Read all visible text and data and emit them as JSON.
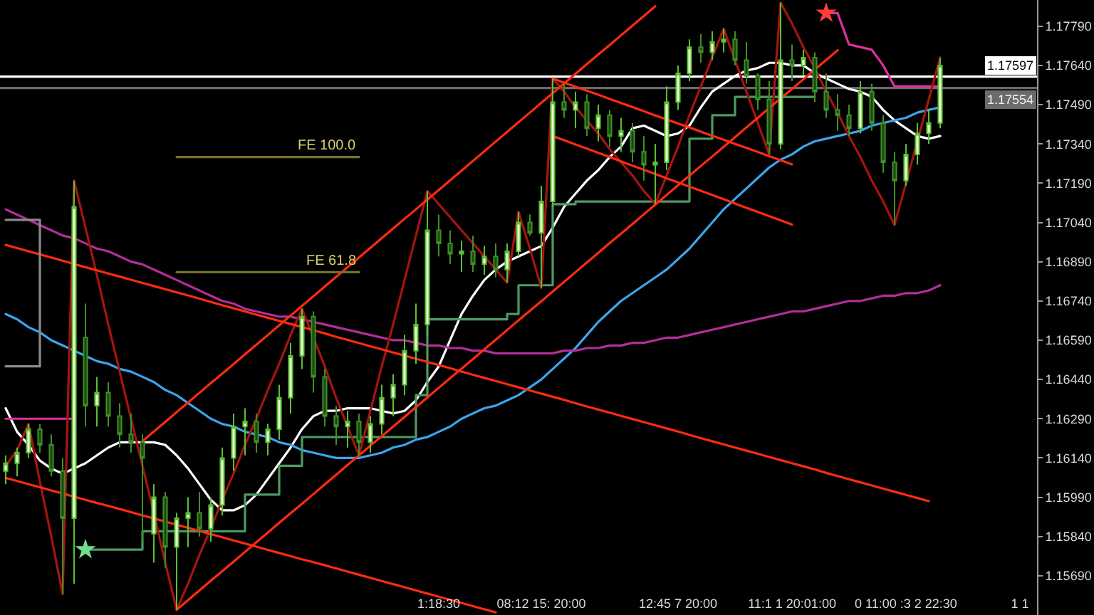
{
  "chart_data": {
    "type": "candlestick",
    "categories": [
      null,
      null,
      null,
      null,
      null,
      null,
      null,
      null,
      null,
      null,
      null,
      null,
      null,
      null,
      null,
      null,
      null,
      null,
      null,
      null,
      null,
      null,
      null,
      null,
      null,
      null,
      null,
      null,
      null,
      null,
      null,
      null,
      null,
      null,
      null,
      null,
      null,
      null,
      "1:18:30",
      null,
      null,
      null,
      null,
      null,
      null,
      null,
      null,
      "08:12 15: 20:00",
      null,
      null,
      null,
      null,
      null,
      null,
      null,
      null,
      null,
      null,
      null,
      "12:45 7 20:00",
      null,
      null,
      null,
      null,
      null,
      null,
      null,
      null,
      null,
      "11:1 1 20:01:00",
      null,
      null,
      null,
      null,
      null,
      null,
      null,
      null,
      null,
      "0 11:00 :3 2 22:30",
      null,
      null,
      null,
      null,
      null,
      null,
      null,
      null,
      null,
      "1 1",
      null
    ],
    "ohlc": [
      [
        1.1609,
        1.1615,
        1.1604,
        1.1612
      ],
      [
        1.1612,
        1.1618,
        1.1607,
        1.1616
      ],
      [
        1.1616,
        1.1627,
        1.1614,
        1.1625
      ],
      [
        1.1625,
        1.1627,
        1.1616,
        1.1619
      ],
      [
        1.1619,
        1.1623,
        1.1607,
        1.1609
      ],
      [
        1.1609,
        1.1614,
        1.1562,
        1.1591
      ],
      [
        1.1591,
        1.172,
        1.1566,
        1.171
      ],
      [
        1.166,
        1.1673,
        1.1626,
        1.1634
      ],
      [
        1.1634,
        1.1645,
        1.1626,
        1.1639
      ],
      [
        1.1639,
        1.1643,
        1.1626,
        1.163
      ],
      [
        1.163,
        1.1635,
        1.1618,
        1.1623
      ],
      [
        1.1623,
        1.1631,
        1.1616,
        1.162
      ],
      [
        1.162,
        1.1623,
        1.1582,
        1.1614
      ],
      [
        1.1585,
        1.1604,
        1.1574,
        1.1599
      ],
      [
        1.1599,
        1.1601,
        1.1572,
        1.158
      ],
      [
        1.158,
        1.1593,
        1.1556,
        1.1591
      ],
      [
        1.1591,
        1.1599,
        1.158,
        1.1593
      ],
      [
        1.1593,
        1.1601,
        1.1584,
        1.1587
      ],
      [
        1.1587,
        1.1599,
        1.1582,
        1.1596
      ],
      [
        1.1596,
        1.1618,
        1.1592,
        1.1614
      ],
      [
        1.1614,
        1.1631,
        1.1609,
        1.1626
      ],
      [
        1.1626,
        1.1633,
        1.1615,
        1.1628
      ],
      [
        1.1628,
        1.1631,
        1.1616,
        1.162
      ],
      [
        1.162,
        1.1627,
        1.1615,
        1.1625
      ],
      [
        1.1625,
        1.1642,
        1.1621,
        1.1637
      ],
      [
        1.1637,
        1.1658,
        1.1631,
        1.1653
      ],
      [
        1.1653,
        1.1671,
        1.1648,
        1.1668
      ],
      [
        1.1668,
        1.167,
        1.1639,
        1.1645
      ],
      [
        1.1645,
        1.1648,
        1.1626,
        1.163
      ],
      [
        1.163,
        1.1634,
        1.1619,
        1.1626
      ],
      [
        1.1626,
        1.1632,
        1.1618,
        1.1628
      ],
      [
        1.1628,
        1.1631,
        1.1615,
        1.162
      ],
      [
        1.162,
        1.163,
        1.1616,
        1.1627
      ],
      [
        1.1627,
        1.1642,
        1.1623,
        1.1637
      ],
      [
        1.1637,
        1.1646,
        1.163,
        1.1642
      ],
      [
        1.1642,
        1.1661,
        1.1638,
        1.1655
      ],
      [
        1.1655,
        1.1673,
        1.165,
        1.1665
      ],
      [
        1.1665,
        1.1716,
        1.1661,
        1.1701
      ],
      [
        1.1701,
        1.1707,
        1.1691,
        1.1696
      ],
      [
        1.1696,
        1.1701,
        1.1688,
        1.1692
      ],
      [
        1.1692,
        1.1697,
        1.1685,
        1.1693
      ],
      [
        1.1693,
        1.1699,
        1.1685,
        1.1688
      ],
      [
        1.1688,
        1.1695,
        1.1684,
        1.1691
      ],
      [
        1.1691,
        1.1696,
        1.1683,
        1.1686
      ],
      [
        1.1686,
        1.1696,
        1.1681,
        1.1693
      ],
      [
        1.1693,
        1.1708,
        1.1691,
        1.1704
      ],
      [
        1.1704,
        1.1707,
        1.1699,
        1.17
      ],
      [
        1.17,
        1.1718,
        1.1679,
        1.1712
      ],
      [
        1.1712,
        1.1759,
        1.171,
        1.175
      ],
      [
        1.175,
        1.1757,
        1.1744,
        1.1747
      ],
      [
        1.1747,
        1.1754,
        1.174,
        1.175
      ],
      [
        1.175,
        1.1753,
        1.1737,
        1.174
      ],
      [
        1.174,
        1.1749,
        1.1735,
        1.1745
      ],
      [
        1.1745,
        1.1747,
        1.1733,
        1.1737
      ],
      [
        1.1737,
        1.1744,
        1.1731,
        1.1739
      ],
      [
        1.1739,
        1.1742,
        1.1727,
        1.1731
      ],
      [
        1.1731,
        1.1737,
        1.172,
        1.1726
      ],
      [
        1.1726,
        1.1734,
        1.1711,
        1.1727
      ],
      [
        1.1727,
        1.1756,
        1.1724,
        1.175
      ],
      [
        1.175,
        1.1764,
        1.1747,
        1.1761
      ],
      [
        1.1761,
        1.1774,
        1.1758,
        1.1771
      ],
      [
        1.1771,
        1.1776,
        1.1765,
        1.1769
      ],
      [
        1.1769,
        1.1777,
        1.1766,
        1.1773
      ],
      [
        1.1773,
        1.1778,
        1.1769,
        1.1774
      ],
      [
        1.1774,
        1.1777,
        1.1764,
        1.1766
      ],
      [
        1.1766,
        1.1773,
        1.1757,
        1.176
      ],
      [
        1.176,
        1.1761,
        1.1747,
        1.1751
      ],
      [
        1.1751,
        1.1758,
        1.173,
        1.1734
      ],
      [
        1.1734,
        1.1788,
        1.1732,
        1.1766
      ],
      [
        1.1766,
        1.1772,
        1.1758,
        1.1764
      ],
      [
        1.1764,
        1.177,
        1.176,
        1.1767
      ],
      [
        1.1767,
        1.1769,
        1.175,
        1.1754
      ],
      [
        1.1754,
        1.1761,
        1.1744,
        1.1747
      ],
      [
        1.1747,
        1.1753,
        1.1739,
        1.1745
      ],
      [
        1.1745,
        1.1749,
        1.1737,
        1.174
      ],
      [
        1.174,
        1.1758,
        1.1738,
        1.1754
      ],
      [
        1.1754,
        1.1757,
        1.1739,
        1.1742
      ],
      [
        1.1742,
        1.1745,
        1.1723,
        1.1727
      ],
      [
        1.1727,
        1.1731,
        1.1703,
        1.172
      ],
      [
        1.172,
        1.1734,
        1.1718,
        1.173
      ],
      [
        1.173,
        1.1742,
        1.1726,
        1.1738
      ],
      [
        1.1738,
        1.1747,
        1.1734,
        1.1742
      ],
      [
        1.1742,
        1.1767,
        1.174,
        1.1764
      ],
      null,
      null,
      null,
      null,
      null,
      null,
      null,
      null
    ],
    "ylim": [
      1.1554,
      1.1789
    ],
    "yticks": [
      {
        "value": 1.1569,
        "label": "1.15690"
      },
      {
        "value": 1.1584,
        "label": "1.15840"
      },
      {
        "value": 1.1599,
        "label": "1.15990"
      },
      {
        "value": 1.1614,
        "label": "1.16140"
      },
      {
        "value": 1.1629,
        "label": "1.16290"
      },
      {
        "value": 1.1644,
        "label": "1.16440"
      },
      {
        "value": 1.1659,
        "label": "1.16590"
      },
      {
        "value": 1.1674,
        "label": "1.16740"
      },
      {
        "value": 1.1689,
        "label": "1.16890"
      },
      {
        "value": 1.1704,
        "label": "1.17040"
      },
      {
        "value": 1.1719,
        "label": "1.17190"
      },
      {
        "value": 1.1734,
        "label": "1.17340"
      },
      {
        "value": 1.1749,
        "label": "1.17490"
      },
      {
        "value": 1.1764,
        "label": "1.17640"
      },
      {
        "value": 1.1779,
        "label": "1.17790"
      }
    ],
    "series": [
      {
        "type": "line",
        "color": "#ffffff",
        "values": [
          1.1633,
          1.1624,
          1.1619,
          1.1613,
          1.161,
          1.1608,
          1.161,
          1.1612,
          1.1615,
          1.1618,
          1.162,
          1.162,
          1.162,
          1.162,
          1.1619,
          1.1615,
          1.161,
          1.1604,
          1.1598,
          1.1594,
          1.1594,
          1.1596,
          1.16,
          1.1606,
          1.1612,
          1.1618,
          1.1625,
          1.163,
          1.1632,
          1.1632,
          1.1633,
          1.1633,
          1.1633,
          1.1632,
          1.1631,
          1.1632,
          1.1636,
          1.1643,
          1.1649,
          1.1659,
          1.1669,
          1.1676,
          1.1682,
          1.1686,
          1.1689,
          1.1691,
          1.1693,
          1.1695,
          1.1702,
          1.171,
          1.1715,
          1.172,
          1.1724,
          1.1729,
          1.1733,
          1.174,
          1.1741,
          1.1739,
          1.1737,
          1.1738,
          1.1741,
          1.1748,
          1.1754,
          1.1757,
          1.176,
          1.1762,
          1.1763,
          1.1765,
          1.1765,
          1.1764,
          1.1764,
          1.1761,
          1.1759,
          1.1757,
          1.1755,
          1.1754,
          1.1752,
          1.1747,
          1.1743,
          1.174,
          1.1737,
          1.1736,
          1.1737,
          null,
          null,
          null,
          null,
          null,
          null,
          null,
          null
        ]
      },
      {
        "type": "line",
        "color": "#3aa6ee",
        "values": [
          1.1669,
          1.1667,
          1.1664,
          1.1662,
          1.1659,
          1.1657,
          1.1655,
          1.1653,
          1.1651,
          1.165,
          1.1648,
          1.1647,
          1.1645,
          1.1643,
          1.164,
          1.1638,
          1.1635,
          1.1632,
          1.1629,
          1.1627,
          1.1626,
          1.1624,
          1.1623,
          1.1622,
          1.162,
          1.1619,
          1.1617,
          1.1616,
          1.1615,
          1.1614,
          1.1614,
          1.1614,
          1.1615,
          1.1616,
          1.1618,
          1.1619,
          1.1621,
          1.1622,
          1.1624,
          1.1626,
          1.1629,
          1.1631,
          1.1633,
          1.1634,
          1.1636,
          1.1638,
          1.1641,
          1.1644,
          1.1648,
          1.1652,
          1.1656,
          1.1661,
          1.1666,
          1.167,
          1.1674,
          1.1677,
          1.168,
          1.1683,
          1.1686,
          1.169,
          1.1694,
          1.1699,
          1.1704,
          1.1709,
          1.1713,
          1.1717,
          1.1721,
          1.1725,
          1.1728,
          1.173,
          1.1733,
          1.1735,
          1.1736,
          1.1737,
          1.1738,
          1.1739,
          1.1741,
          1.1742,
          1.1743,
          1.1744,
          1.1746,
          1.1747,
          1.1748,
          null,
          null,
          null,
          null,
          null,
          null,
          null,
          null
        ]
      },
      {
        "type": "line",
        "color": "#b42d9b",
        "values": [
          1.1709,
          1.1707,
          1.1705,
          1.1703,
          1.1701,
          1.1699,
          1.1698,
          1.1696,
          1.1694,
          1.1693,
          1.1691,
          1.1689,
          1.1688,
          1.1686,
          1.1684,
          1.1682,
          1.168,
          1.1678,
          1.1676,
          1.1674,
          1.1673,
          1.1671,
          1.167,
          1.1669,
          1.1668,
          1.1668,
          1.1667,
          1.1666,
          1.1665,
          1.1664,
          1.1663,
          1.1662,
          1.1661,
          1.166,
          1.1659,
          1.1659,
          1.1658,
          1.1657,
          1.1657,
          1.1656,
          1.1656,
          1.1655,
          1.1655,
          1.1654,
          1.1654,
          1.1654,
          1.1654,
          1.1654,
          1.1654,
          1.1655,
          1.1655,
          1.1656,
          1.1656,
          1.1657,
          1.1657,
          1.1658,
          1.1658,
          1.1659,
          1.166,
          1.166,
          1.1661,
          1.1662,
          1.1663,
          1.1664,
          1.1665,
          1.1666,
          1.1667,
          1.1668,
          1.1669,
          1.167,
          1.167,
          1.1671,
          1.1672,
          1.1673,
          1.1674,
          1.1674,
          1.1675,
          1.1676,
          1.1676,
          1.1677,
          1.1677,
          1.1678,
          1.168,
          null,
          null,
          null,
          null,
          null,
          null,
          null,
          null
        ]
      },
      {
        "type": "step",
        "color": "#4e9a62",
        "values": [
          null,
          null,
          null,
          null,
          null,
          null,
          null,
          1.1579,
          1.1579,
          1.1579,
          1.1579,
          1.1579,
          1.1586,
          1.1586,
          1.1586,
          1.1586,
          1.1586,
          1.1586,
          1.1586,
          1.1586,
          1.1586,
          1.16,
          1.16,
          1.16,
          1.1611,
          1.1611,
          1.1622,
          1.1622,
          1.1622,
          1.1622,
          1.1622,
          1.1622,
          1.1622,
          1.1622,
          1.1622,
          1.1622,
          1.1638,
          1.1667,
          1.1667,
          1.1667,
          1.1667,
          1.1667,
          1.1667,
          1.1667,
          1.1669,
          1.168,
          1.168,
          1.168,
          1.1711,
          1.1711,
          1.1712,
          1.1712,
          1.1712,
          1.1712,
          1.1712,
          1.1712,
          1.1712,
          1.1712,
          1.1712,
          1.1712,
          1.1736,
          1.1736,
          1.1745,
          1.1745,
          1.1752,
          1.1752,
          1.1752,
          1.1752,
          1.1752,
          1.1752,
          1.1752,
          1.1752,
          null,
          null,
          null,
          null,
          null,
          null,
          null,
          null,
          null,
          null,
          null,
          null,
          null,
          null,
          null,
          null,
          null,
          null,
          null
        ]
      },
      {
        "type": "line",
        "color": "#e0309e",
        "values": [
          1.1629,
          1.1629,
          1.1629,
          1.1629,
          1.1629,
          1.1629,
          1.1629,
          null,
          null,
          null,
          null,
          null,
          null,
          null,
          null,
          null,
          null,
          null,
          null,
          null,
          null,
          null,
          null,
          null,
          null,
          null,
          null,
          null,
          null,
          null,
          null,
          null,
          null,
          null,
          null,
          null,
          null,
          null,
          null,
          null,
          null,
          null,
          null,
          null,
          null,
          null,
          null,
          null,
          null,
          null,
          null,
          null,
          null,
          null,
          null,
          null,
          null,
          null,
          null,
          null,
          null,
          null,
          null,
          null,
          null,
          null,
          null,
          null,
          null,
          null,
          null,
          null,
          1.1784,
          1.1784,
          1.1772,
          1.1771,
          1.177,
          1.1764,
          1.1756,
          1.1756,
          1.1756,
          1.1756,
          1.1756,
          null,
          null,
          null,
          null,
          null,
          null,
          null,
          null
        ]
      },
      {
        "type": "line",
        "color": "#a5150f",
        "values": [
          1.1611,
          1.1617,
          1.1627,
          1.1605,
          1.1584,
          1.1562,
          1.172,
          1.1702,
          1.1684,
          1.1665,
          1.1647,
          1.1629,
          1.1611,
          1.1593,
          1.1574,
          1.1556,
          1.1566,
          1.1577,
          1.1587,
          1.1598,
          1.1608,
          1.1619,
          1.1629,
          1.164,
          1.165,
          1.1661,
          1.1671,
          1.166,
          1.1649,
          1.1637,
          1.1626,
          1.1615,
          1.1632,
          1.1649,
          1.1665,
          1.1682,
          1.1699,
          1.1716,
          1.1711,
          1.1706,
          1.1701,
          1.1696,
          1.1691,
          1.1686,
          1.1681,
          1.1708,
          1.1694,
          1.1679,
          1.1759,
          1.1754,
          1.1748,
          1.1743,
          1.1738,
          1.1732,
          1.1727,
          1.1722,
          1.1716,
          1.1711,
          1.1722,
          1.1733,
          1.1745,
          1.1756,
          1.1767,
          1.1778,
          1.1766,
          1.1754,
          1.1742,
          1.173,
          1.1788,
          1.178,
          1.1771,
          1.1763,
          1.1754,
          1.1746,
          1.1737,
          1.1729,
          1.172,
          1.1712,
          1.1703,
          1.1719,
          1.1735,
          1.1751,
          1.1767,
          null,
          null,
          null,
          null,
          null,
          null,
          null,
          null
        ]
      },
      {
        "type": "line",
        "color": "#ff2b10",
        "values": [
          null,
          null,
          null,
          null,
          null,
          null,
          null,
          null,
          null,
          null,
          null,
          null,
          1.16204,
          1.16241,
          1.16278,
          1.16315,
          1.16352,
          1.16389,
          1.16426,
          1.16462,
          1.16499,
          1.16536,
          1.16573,
          1.1661,
          1.16647,
          1.16684,
          1.16721,
          1.16758,
          1.16795,
          1.16832,
          1.16869,
          1.16906,
          1.16943,
          1.1698,
          1.17017,
          1.17054,
          1.1709,
          1.17127,
          1.17164,
          1.17201,
          1.17238,
          1.17275,
          1.17312,
          1.17349,
          1.17386,
          1.17423,
          1.1746,
          1.17497,
          1.17534,
          1.17571,
          1.17608,
          1.17645,
          1.17682,
          1.17718,
          1.17755,
          1.17792,
          1.17829,
          1.17866,
          null,
          null,
          null,
          null,
          null,
          null,
          null,
          null,
          null,
          null,
          null,
          null,
          null,
          null,
          null,
          null,
          null,
          null,
          null,
          null,
          null,
          null,
          null,
          null,
          null,
          null,
          null,
          null,
          null,
          null,
          null,
          null,
          null
        ]
      },
      {
        "type": "line",
        "color": "#ff2b10",
        "values": [
          null,
          null,
          null,
          null,
          null,
          null,
          null,
          null,
          null,
          null,
          null,
          null,
          null,
          null,
          null,
          1.1556,
          1.15597,
          1.15634,
          1.15671,
          1.15707,
          1.15744,
          1.15781,
          1.15818,
          1.15855,
          1.15892,
          1.15929,
          1.15965,
          1.16002,
          1.16039,
          1.16076,
          1.16113,
          1.1615,
          1.16187,
          1.16223,
          1.1626,
          1.16297,
          1.16334,
          1.16371,
          1.16408,
          1.16445,
          1.16481,
          1.16518,
          1.16555,
          1.16592,
          1.16629,
          1.16666,
          1.16703,
          1.16739,
          1.16776,
          1.16813,
          1.1685,
          1.16887,
          1.16924,
          1.16961,
          1.16997,
          1.17034,
          1.17071,
          1.17108,
          1.17145,
          1.17182,
          1.17219,
          1.17256,
          1.17292,
          1.17329,
          1.17366,
          1.17403,
          1.1744,
          1.17477,
          1.17514,
          1.1755,
          1.17587,
          1.17624,
          1.17661,
          1.17698,
          null,
          null,
          null,
          null,
          null,
          null,
          null,
          null,
          null,
          null,
          null,
          null,
          null,
          null,
          null,
          null,
          null
        ]
      },
      {
        "type": "line",
        "color": "#ff2b10",
        "values": [
          1.16954,
          1.16942,
          1.1693,
          1.16918,
          1.16906,
          1.16894,
          1.16881,
          1.16869,
          1.16857,
          1.16845,
          1.16833,
          1.16821,
          1.16809,
          1.16797,
          1.16785,
          1.16773,
          1.16761,
          1.16749,
          1.16736,
          1.16724,
          1.16712,
          1.167,
          1.16688,
          1.16676,
          1.16664,
          1.16652,
          1.1664,
          1.16628,
          1.16616,
          1.16603,
          1.16591,
          1.16579,
          1.16567,
          1.16555,
          1.16543,
          1.16531,
          1.16519,
          1.16507,
          1.16495,
          1.16483,
          1.1647,
          1.16458,
          1.16446,
          1.16434,
          1.16422,
          1.1641,
          1.16398,
          1.16386,
          1.16374,
          1.16362,
          1.16349,
          1.16337,
          1.16325,
          1.16313,
          1.16301,
          1.16289,
          1.16277,
          1.16265,
          1.16253,
          1.16241,
          1.16228,
          1.16216,
          1.16204,
          1.16192,
          1.1618,
          1.16168,
          1.16156,
          1.16144,
          1.16132,
          1.1612,
          1.16108,
          1.16096,
          1.16083,
          1.16071,
          1.16059,
          1.16047,
          1.16035,
          1.16023,
          1.16011,
          1.15999,
          1.15987,
          1.15975,
          null,
          null,
          null,
          null,
          null,
          null,
          null,
          null,
          null
        ]
      },
      {
        "type": "line",
        "color": "#ff2b10",
        "values": [
          1.16064,
          1.16052,
          1.1604,
          1.16028,
          1.16016,
          1.16004,
          1.15992,
          1.1598,
          1.15968,
          1.15957,
          1.15945,
          1.15933,
          1.15921,
          1.15909,
          1.15897,
          1.15885,
          1.15873,
          1.15861,
          1.15849,
          1.15837,
          1.15825,
          1.15813,
          1.15801,
          1.15789,
          1.15777,
          1.15765,
          1.15753,
          1.15742,
          1.1573,
          1.15718,
          1.15706,
          1.15694,
          1.15682,
          1.1567,
          1.15658,
          1.15646,
          1.15634,
          1.15622,
          1.1561,
          1.15598,
          1.15586,
          1.15574,
          1.15562,
          1.1555,
          null,
          null,
          null,
          null,
          null,
          null,
          null,
          null,
          null,
          null,
          null,
          null,
          null,
          null,
          null,
          null,
          null,
          null,
          null,
          null,
          null,
          null,
          null,
          null,
          null,
          null,
          null,
          null,
          null,
          null,
          null,
          null,
          null,
          null,
          null,
          null,
          null,
          null,
          null,
          null,
          null,
          null,
          null,
          null,
          null,
          null,
          null
        ]
      },
      {
        "type": "line",
        "color": "#ff2b10",
        "values": [
          null,
          null,
          null,
          null,
          null,
          null,
          null,
          null,
          null,
          null,
          null,
          null,
          null,
          null,
          null,
          null,
          null,
          null,
          null,
          null,
          null,
          null,
          null,
          null,
          null,
          null,
          null,
          null,
          null,
          null,
          null,
          null,
          null,
          null,
          null,
          null,
          null,
          null,
          null,
          null,
          null,
          null,
          null,
          null,
          null,
          null,
          null,
          null,
          1.1759,
          1.17574,
          1.17559,
          1.17543,
          1.17528,
          1.17512,
          1.17496,
          1.17481,
          1.17465,
          1.17449,
          1.17434,
          1.17418,
          1.17403,
          1.17387,
          1.17371,
          1.17356,
          1.1734,
          1.17325,
          1.17309,
          1.17293,
          1.17278,
          1.17262,
          null,
          null,
          null,
          null,
          null,
          null,
          null,
          null,
          null,
          null,
          null,
          null,
          null,
          null,
          null,
          null,
          null,
          null,
          null,
          null,
          null
        ]
      },
      {
        "type": "line",
        "color": "#ff2b10",
        "values": [
          null,
          null,
          null,
          null,
          null,
          null,
          null,
          null,
          null,
          null,
          null,
          null,
          null,
          null,
          null,
          null,
          null,
          null,
          null,
          null,
          null,
          null,
          null,
          null,
          null,
          null,
          null,
          null,
          null,
          null,
          null,
          null,
          null,
          null,
          null,
          null,
          null,
          null,
          null,
          null,
          null,
          null,
          null,
          null,
          null,
          null,
          null,
          null,
          1.1737,
          1.17354,
          1.17338,
          1.17322,
          1.17306,
          1.1729,
          1.17273,
          1.17257,
          1.17241,
          1.17225,
          1.17209,
          1.17193,
          1.17177,
          1.17161,
          1.17145,
          1.17129,
          1.17112,
          1.17096,
          1.1708,
          1.17064,
          1.17048,
          1.17032,
          null,
          null,
          null,
          null,
          null,
          null,
          null,
          null,
          null,
          null,
          null,
          null,
          null,
          null,
          null,
          null,
          null,
          null,
          null,
          null,
          null
        ]
      },
      {
        "type": "line",
        "name": "FE 100.0",
        "color": "#77732a",
        "values": [
          null,
          null,
          null,
          null,
          null,
          null,
          null,
          null,
          null,
          null,
          null,
          null,
          null,
          null,
          null,
          1.1729,
          1.1729,
          1.1729,
          1.1729,
          1.1729,
          1.1729,
          1.1729,
          1.1729,
          1.1729,
          1.1729,
          1.1729,
          1.1729,
          1.1729,
          1.1729,
          1.1729,
          1.1729,
          1.1729,
          null,
          null,
          null,
          null,
          null,
          null,
          null,
          null,
          null,
          null,
          null,
          null,
          null,
          null,
          null,
          null,
          null,
          null,
          null,
          null,
          null,
          null,
          null,
          null,
          null,
          null,
          null,
          null,
          null,
          null,
          null,
          null,
          null,
          null,
          null,
          null,
          null,
          null,
          null,
          null,
          null,
          null,
          null,
          null,
          null,
          null,
          null,
          null,
          null,
          null,
          null,
          null,
          null,
          null,
          null,
          null,
          null,
          null,
          null
        ]
      },
      {
        "type": "line",
        "name": "FE 61.8",
        "color": "#77732a",
        "values": [
          null,
          null,
          null,
          null,
          null,
          null,
          null,
          null,
          null,
          null,
          null,
          null,
          null,
          null,
          null,
          1.1685,
          1.1685,
          1.1685,
          1.1685,
          1.1685,
          1.1685,
          1.1685,
          1.1685,
          1.1685,
          1.1685,
          1.1685,
          1.1685,
          1.1685,
          1.1685,
          1.1685,
          1.1685,
          1.1685,
          null,
          null,
          null,
          null,
          null,
          null,
          null,
          null,
          null,
          null,
          null,
          null,
          null,
          null,
          null,
          null,
          null,
          null,
          null,
          null,
          null,
          null,
          null,
          null,
          null,
          null,
          null,
          null,
          null,
          null,
          null,
          null,
          null,
          null,
          null,
          null,
          null,
          null,
          null,
          null,
          null,
          null,
          null,
          null,
          null,
          null,
          null,
          null,
          null,
          null,
          null,
          null,
          null,
          null,
          null,
          null,
          null,
          null,
          null
        ]
      },
      {
        "type": "step",
        "color": "#8a8a8a",
        "values": [
          1.1705,
          1.1705,
          1.1705,
          1.1649,
          null,
          null,
          null,
          null,
          null,
          null,
          null,
          null,
          null,
          null,
          null,
          null,
          null,
          null,
          null,
          null,
          null,
          null,
          null,
          null,
          null,
          null,
          null,
          null,
          null,
          null,
          null,
          null,
          null,
          null,
          null,
          null,
          null,
          null,
          null,
          null,
          null,
          null,
          null,
          null,
          null,
          null,
          null,
          null,
          null,
          null,
          null,
          null,
          null,
          null,
          null,
          null,
          null,
          null,
          null,
          null,
          null,
          null,
          null,
          null,
          null,
          null,
          null,
          null,
          null,
          null,
          null,
          null,
          null,
          null,
          null,
          null,
          null,
          null,
          null,
          null,
          null,
          null,
          null,
          null,
          null,
          null,
          null,
          null,
          null,
          null,
          null
        ]
      },
      {
        "type": "line",
        "color": "#8a8a8a",
        "values": [
          1.1649,
          1.1649,
          1.1649,
          1.1649,
          null,
          null,
          null,
          null,
          null,
          null,
          null,
          null,
          null,
          null,
          null,
          null,
          null,
          null,
          null,
          null,
          null,
          null,
          null,
          null,
          null,
          null,
          null,
          null,
          null,
          null,
          null,
          null,
          null,
          null,
          null,
          null,
          null,
          null,
          null,
          null,
          null,
          null,
          null,
          null,
          null,
          null,
          null,
          null,
          null,
          null,
          null,
          null,
          null,
          null,
          null,
          null,
          null,
          null,
          null,
          null,
          null,
          null,
          null,
          null,
          null,
          null,
          null,
          null,
          null,
          null,
          null,
          null,
          null,
          null,
          null,
          null,
          null,
          null,
          null,
          null,
          null,
          null,
          null,
          null,
          null,
          null,
          null,
          null,
          null,
          null,
          null
        ]
      },
      {
        "type": "scatter",
        "marker": "star",
        "color": "#6fe08a",
        "values": [
          null,
          null,
          null,
          null,
          null,
          null,
          null,
          1.1579,
          null,
          null,
          null,
          null,
          null,
          null,
          null,
          null,
          null,
          null,
          null,
          null,
          null,
          null,
          null,
          null,
          null,
          null,
          null,
          null,
          null,
          null,
          null,
          null,
          null,
          null,
          null,
          null,
          null,
          null,
          null,
          null,
          null,
          null,
          null,
          null,
          null,
          null,
          null,
          null,
          null,
          null,
          null,
          null,
          null,
          null,
          null,
          null,
          null,
          null,
          null,
          null,
          null,
          null,
          null,
          null,
          null,
          null,
          null,
          null,
          null,
          null,
          null,
          null,
          null,
          null,
          null,
          null,
          null,
          null,
          null,
          null,
          null,
          null,
          null,
          null,
          null,
          null,
          null,
          null,
          null,
          null,
          null
        ]
      },
      {
        "type": "scatter",
        "marker": "star",
        "color": "#ff3b3b",
        "values": [
          null,
          null,
          null,
          null,
          null,
          null,
          null,
          null,
          null,
          null,
          null,
          null,
          null,
          null,
          null,
          null,
          null,
          null,
          null,
          null,
          null,
          null,
          null,
          null,
          null,
          null,
          null,
          null,
          null,
          null,
          null,
          null,
          null,
          null,
          null,
          null,
          null,
          null,
          null,
          null,
          null,
          null,
          null,
          null,
          null,
          null,
          null,
          null,
          null,
          null,
          null,
          null,
          null,
          null,
          null,
          null,
          null,
          null,
          null,
          null,
          null,
          null,
          null,
          null,
          null,
          null,
          null,
          null,
          null,
          null,
          null,
          null,
          1.1784,
          null,
          null,
          null,
          null,
          null,
          null,
          null,
          null,
          null,
          null,
          null,
          null,
          null,
          null,
          null,
          null,
          null,
          null
        ]
      }
    ],
    "ref_lines": [
      {
        "axis": "y",
        "value": 1.17597,
        "label": "1.17597",
        "color": "#ffffff"
      },
      {
        "axis": "y",
        "value": 1.17554,
        "label": "1.17554",
        "color": "#6b6b6b"
      }
    ]
  }
}
